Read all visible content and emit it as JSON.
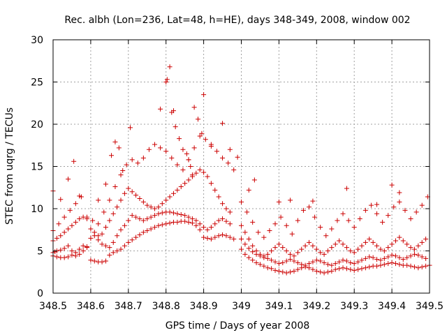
{
  "chart_data": {
    "type": "scatter",
    "title": "Rec. albh (Lon=236, Lat=48, h=HE), days 348-349, 2008, window 002",
    "xlabel": "GPS time / Days of year 2008",
    "ylabel": "STEC from uqrg / TECUs",
    "xlim": [
      348.5,
      349.5
    ],
    "ylim": [
      0,
      30
    ],
    "xticks": [
      348.5,
      348.6,
      348.7,
      348.8,
      348.9,
      349.0,
      349.1,
      349.2,
      349.3,
      349.4,
      349.5
    ],
    "xtick_labels": [
      "348.5",
      "348.6",
      "348.7",
      "348.8",
      "348.9",
      "349",
      "349.1",
      "349.2",
      "349.3",
      "349.4",
      "349.5"
    ],
    "yticks": [
      0,
      5,
      10,
      15,
      20,
      25,
      30
    ],
    "ytick_labels": [
      "0",
      "5",
      "10",
      "15",
      "20",
      "25",
      "30"
    ],
    "grid": true,
    "marker": "plus",
    "color": "#cc0000",
    "series": [
      {
        "x": [
          348.5,
          348.505,
          348.51,
          348.52,
          348.53,
          348.54,
          348.55,
          348.56,
          348.57,
          348.58,
          348.59,
          348.6,
          348.61,
          348.62,
          348.63,
          348.64,
          348.65,
          348.66,
          348.67,
          348.68,
          348.69,
          348.7,
          348.71,
          348.72,
          348.73,
          348.74,
          348.75,
          348.76,
          348.77,
          348.78,
          348.79,
          348.8,
          348.81,
          348.82,
          348.83,
          348.84,
          348.85,
          348.86,
          348.87,
          348.88,
          348.89,
          348.9,
          348.91,
          348.92,
          348.93,
          348.94,
          348.95,
          348.96,
          348.97,
          348.98
        ],
        "y": [
          4.8,
          4.9,
          5.0,
          5.1,
          5.3,
          5.6,
          5.0,
          4.8,
          5.2,
          5.6,
          5.5,
          3.9,
          3.8,
          3.7,
          3.7,
          3.8,
          4.5,
          4.8,
          5.0,
          5.2,
          5.6,
          6.0,
          6.3,
          6.6,
          6.9,
          7.2,
          7.4,
          7.6,
          7.8,
          8.0,
          8.1,
          8.2,
          8.3,
          8.4,
          8.4,
          8.5,
          8.5,
          8.4,
          8.3,
          8.0,
          7.5,
          6.6,
          6.5,
          6.4,
          6.6,
          6.8,
          6.9,
          6.8,
          6.6,
          6.4
        ]
      },
      {
        "x": [
          348.5,
          348.51,
          348.52,
          348.53,
          348.54,
          348.55,
          348.56,
          348.57,
          348.58,
          348.59,
          348.6,
          348.61,
          348.62,
          348.63,
          348.64,
          348.65,
          348.66,
          348.67,
          348.68,
          348.69,
          348.7,
          348.71,
          348.72,
          348.73,
          348.74,
          348.75,
          348.76,
          348.77,
          348.78,
          348.79,
          348.8,
          348.81,
          348.82,
          348.83,
          348.84,
          348.85,
          348.86,
          348.87,
          348.88,
          348.89,
          348.9,
          348.91,
          348.92,
          348.93,
          348.94,
          348.95,
          348.96,
          348.97
        ],
        "y": [
          4.4,
          4.3,
          4.2,
          4.2,
          4.3,
          4.5,
          4.4,
          4.6,
          5.0,
          5.4,
          6.5,
          6.8,
          6.3,
          5.8,
          5.6,
          5.4,
          6.0,
          6.8,
          7.5,
          8.0,
          8.6,
          9.2,
          9.0,
          8.8,
          8.6,
          8.8,
          9.0,
          9.2,
          9.4,
          9.5,
          9.6,
          9.6,
          9.5,
          9.4,
          9.3,
          9.2,
          9.0,
          8.8,
          8.6,
          8.2,
          7.8,
          7.5,
          7.8,
          8.2,
          8.6,
          8.8,
          8.5,
          8.2
        ]
      },
      {
        "x": [
          348.5,
          348.51,
          348.52,
          348.53,
          348.54,
          348.55,
          348.56,
          348.57,
          348.58,
          348.59,
          348.6,
          348.61,
          348.62,
          348.63,
          348.64,
          348.65,
          348.66,
          348.67,
          348.68,
          348.69,
          348.7,
          348.71,
          348.72,
          348.73,
          348.74,
          348.75,
          348.76,
          348.77,
          348.78,
          348.79,
          348.8,
          348.81,
          348.82,
          348.83,
          348.84,
          348.85,
          348.86,
          348.87,
          348.88,
          348.89,
          348.9,
          348.91,
          348.92,
          348.93,
          348.94,
          348.95,
          348.96,
          348.97
        ],
        "y": [
          6.2,
          6.5,
          6.8,
          7.2,
          7.6,
          8.0,
          8.4,
          8.8,
          9.0,
          8.8,
          7.6,
          7.2,
          6.8,
          7.0,
          7.8,
          8.6,
          9.4,
          10.2,
          11.0,
          11.8,
          12.4,
          12.0,
          11.6,
          11.2,
          10.8,
          10.4,
          10.2,
          10.0,
          10.2,
          10.6,
          11.0,
          11.4,
          11.8,
          12.2,
          12.6,
          13.0,
          13.4,
          13.8,
          14.2,
          14.6,
          14.3,
          13.8,
          13.0,
          12.2,
          11.4,
          10.6,
          10.0,
          9.6
        ]
      },
      {
        "x": [
          348.5,
          348.515,
          348.53,
          348.545,
          348.56,
          348.575,
          348.59,
          348.605,
          348.62,
          348.635,
          348.65,
          348.665,
          348.68,
          348.695,
          348.71,
          348.725,
          348.74,
          348.755,
          348.77,
          348.785,
          348.8,
          348.815,
          348.83,
          348.845,
          348.86,
          348.875,
          348.89,
          348.905,
          348.92,
          348.935,
          348.95,
          348.965,
          348.98
        ],
        "y": [
          7.4,
          8.2,
          9.0,
          9.8,
          10.6,
          11.4,
          9.0,
          8.6,
          8.2,
          9.6,
          11.0,
          12.6,
          14.0,
          15.2,
          15.8,
          15.4,
          16.0,
          17.0,
          17.6,
          17.2,
          16.8,
          16.0,
          15.2,
          14.6,
          15.8,
          17.2,
          18.6,
          18.2,
          17.6,
          16.8,
          16.0,
          15.4,
          14.6
        ]
      },
      {
        "x": [
          348.5,
          348.52,
          348.54,
          348.555,
          348.57,
          348.62,
          348.64,
          348.655,
          348.665,
          348.675,
          348.685,
          348.705,
          348.785,
          348.8,
          348.803,
          348.815,
          348.82,
          348.86,
          348.875,
          348.885,
          348.895,
          348.9,
          348.92,
          348.95,
          348.97,
          348.99
        ],
        "y": [
          12.1,
          11.1,
          13.5,
          15.6,
          11.5,
          11.0,
          12.9,
          16.3,
          17.9,
          17.2,
          14.5,
          19.6,
          21.8,
          25.0,
          25.3,
          21.4,
          21.6,
          15.8,
          22.0,
          20.6,
          18.9,
          23.5,
          17.4,
          20.1,
          17.0,
          16.1
        ]
      },
      {
        "x": [
          349.0,
          349.01,
          349.02,
          349.03,
          349.04,
          349.05,
          349.06,
          349.07,
          349.08,
          349.09,
          349.1,
          349.11,
          349.12,
          349.13,
          349.14,
          349.15,
          349.16,
          349.17,
          349.18,
          349.19,
          349.2,
          349.21,
          349.22,
          349.23,
          349.24,
          349.25,
          349.26,
          349.27,
          349.28,
          349.29,
          349.3,
          349.31,
          349.32,
          349.33,
          349.34,
          349.35,
          349.36,
          349.37,
          349.38,
          349.39,
          349.4,
          349.41,
          349.42,
          349.43,
          349.44,
          349.45,
          349.46,
          349.47,
          349.48,
          349.49,
          349.5
        ],
        "y": [
          5.2,
          4.6,
          4.2,
          3.9,
          3.6,
          3.4,
          3.2,
          3.0,
          2.9,
          2.7,
          2.6,
          2.5,
          2.4,
          2.5,
          2.6,
          2.8,
          3.0,
          3.1,
          3.0,
          2.8,
          2.6,
          2.5,
          2.4,
          2.5,
          2.6,
          2.8,
          2.9,
          3.0,
          2.9,
          2.8,
          2.7,
          2.8,
          2.9,
          3.0,
          3.1,
          3.2,
          3.2,
          3.3,
          3.4,
          3.5,
          3.6,
          3.5,
          3.4,
          3.3,
          3.3,
          3.2,
          3.1,
          3.0,
          3.1,
          3.2,
          3.3
        ]
      },
      {
        "x": [
          349.0,
          349.01,
          349.02,
          349.03,
          349.04,
          349.05,
          349.06,
          349.07,
          349.08,
          349.09,
          349.1,
          349.11,
          349.12,
          349.13,
          349.14,
          349.15,
          349.16,
          349.17,
          349.18,
          349.19,
          349.2,
          349.21,
          349.22,
          349.23,
          349.24,
          349.25,
          349.26,
          349.27,
          349.28,
          349.29,
          349.3,
          349.31,
          349.32,
          349.33,
          349.34,
          349.35,
          349.36,
          349.37,
          349.38,
          349.39,
          349.4,
          349.41,
          349.42,
          349.43,
          349.44,
          349.45,
          349.46,
          349.47,
          349.48,
          349.49
        ],
        "y": [
          6.4,
          5.8,
          5.3,
          4.9,
          4.6,
          4.4,
          4.2,
          4.1,
          3.9,
          3.7,
          3.5,
          3.6,
          3.8,
          4.0,
          3.8,
          3.6,
          3.4,
          3.3,
          3.5,
          3.7,
          3.9,
          3.8,
          3.6,
          3.4,
          3.3,
          3.5,
          3.7,
          3.9,
          3.8,
          3.6,
          3.5,
          3.7,
          3.9,
          4.1,
          4.3,
          4.2,
          4.0,
          3.9,
          4.1,
          4.3,
          4.5,
          4.4,
          4.2,
          4.0,
          4.2,
          4.4,
          4.6,
          4.5,
          4.3,
          4.1
        ]
      },
      {
        "x": [
          349.0,
          349.01,
          349.02,
          349.03,
          349.04,
          349.05,
          349.06,
          349.07,
          349.08,
          349.09,
          349.1,
          349.11,
          349.12,
          349.13,
          349.14,
          349.15,
          349.16,
          349.17,
          349.18,
          349.19,
          349.2,
          349.21,
          349.22,
          349.23,
          349.24,
          349.25,
          349.26,
          349.27,
          349.28,
          349.29,
          349.3,
          349.31,
          349.32,
          349.33,
          349.34,
          349.35,
          349.36,
          349.37,
          349.38,
          349.39,
          349.4,
          349.41,
          349.42,
          349.43,
          349.44,
          349.45,
          349.46,
          349.47,
          349.48,
          349.49
        ],
        "y": [
          8.0,
          7.2,
          6.4,
          5.6,
          5.0,
          4.6,
          4.4,
          4.6,
          5.0,
          5.4,
          5.8,
          5.4,
          5.0,
          4.6,
          4.4,
          4.8,
          5.2,
          5.6,
          6.0,
          5.6,
          5.2,
          4.8,
          4.6,
          5.0,
          5.4,
          5.8,
          6.2,
          5.8,
          5.4,
          5.0,
          4.8,
          5.2,
          5.6,
          6.0,
          6.4,
          6.0,
          5.6,
          5.2,
          5.0,
          5.4,
          5.8,
          6.2,
          6.6,
          6.2,
          5.8,
          5.4,
          5.2,
          5.6,
          6.0,
          6.4
        ]
      },
      {
        "x": [
          349.0,
          349.015,
          349.03,
          349.045,
          349.06,
          349.075,
          349.09,
          349.105,
          349.12,
          349.135,
          349.15,
          349.165,
          349.18,
          349.195,
          349.21,
          349.225,
          349.24,
          349.255,
          349.27,
          349.285,
          349.3,
          349.315,
          349.33,
          349.345,
          349.36,
          349.375,
          349.39,
          349.405,
          349.42,
          349.435,
          349.45,
          349.465,
          349.48,
          349.495
        ],
        "y": [
          10.8,
          9.6,
          8.4,
          7.2,
          6.6,
          7.4,
          8.2,
          9.0,
          8.0,
          7.0,
          8.6,
          9.8,
          10.2,
          9.0,
          7.8,
          6.8,
          7.6,
          8.6,
          9.4,
          8.6,
          7.8,
          8.8,
          9.8,
          10.4,
          9.4,
          8.4,
          9.2,
          10.2,
          10.8,
          9.8,
          8.8,
          9.6,
          10.4,
          11.4
        ]
      },
      {
        "x": [
          349.02,
          349.035,
          349.1,
          349.13,
          349.19,
          349.28,
          349.36,
          349.4,
          349.42
        ],
        "y": [
          12.2,
          13.4,
          10.8,
          11.0,
          10.9,
          12.4,
          10.5,
          12.8,
          11.9
        ]
      },
      {
        "x": [
          348.81,
          348.825,
          348.835,
          348.845,
          348.855,
          348.865,
          348.87
        ],
        "y": [
          26.8,
          19.7,
          18.3,
          17.0,
          16.5,
          15.0,
          14.0
        ]
      }
    ]
  }
}
